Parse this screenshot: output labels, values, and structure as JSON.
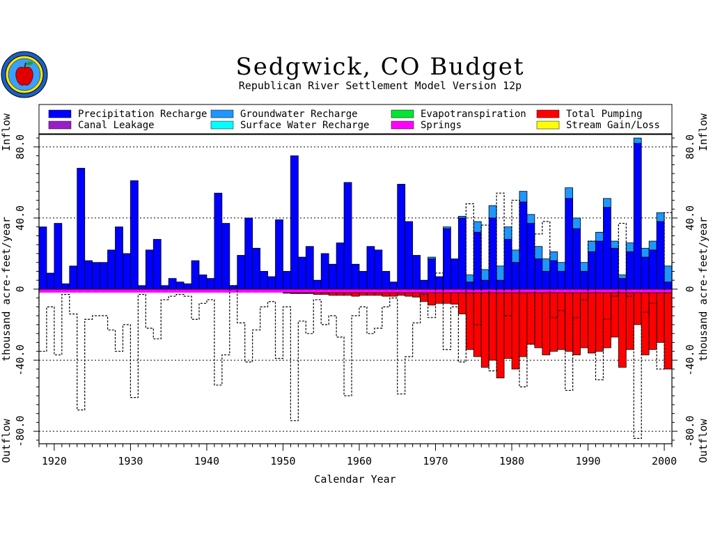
{
  "chart_data": {
    "type": "bar",
    "title": "Sedgwick, CO Budget",
    "subtitle": "Republican River Settlement Model Version 12p",
    "xlabel": "Calendar Year",
    "ylabel": "thousand acre-feet/year",
    "top_label": "Inflow",
    "bottom_label": "Outflow",
    "xlim": [
      1918,
      2001
    ],
    "ylim": [
      -87,
      87
    ],
    "x_ticks": [
      1920,
      1930,
      1940,
      1950,
      1960,
      1970,
      1980,
      1990,
      2000
    ],
    "x_tick_labels": [
      "1920",
      "1930",
      "1940",
      "1950",
      "1960",
      "1970",
      "1980",
      "1990",
      "2000"
    ],
    "y_ticks": [
      -80,
      -40,
      0,
      40,
      80
    ],
    "y_tick_labels": [
      "-80.0",
      "-40.0",
      "0",
      "40.0",
      "80.0"
    ],
    "gridlines_y": [
      -80,
      -40,
      40,
      80
    ],
    "legend_position": "top",
    "legend": [
      {
        "label": "Precipitation Recharge",
        "color": "#0000ff"
      },
      {
        "label": "Canal Leakage",
        "color": "#9a1ec8"
      },
      {
        "label": "Groundwater Recharge",
        "color": "#1e96ff"
      },
      {
        "label": "Surface Water Recharge",
        "color": "#00ffff"
      },
      {
        "label": "Evapotranspiration",
        "color": "#00e632"
      },
      {
        "label": "Springs",
        "color": "#ff00ff"
      },
      {
        "label": "Total Pumping",
        "color": "#ff0000"
      },
      {
        "label": "Stream Gain/Loss",
        "color": "#ffff00"
      }
    ],
    "years": [
      1918,
      1919,
      1920,
      1921,
      1922,
      1923,
      1924,
      1925,
      1926,
      1927,
      1928,
      1929,
      1930,
      1931,
      1932,
      1933,
      1934,
      1935,
      1936,
      1937,
      1938,
      1939,
      1940,
      1941,
      1942,
      1943,
      1944,
      1945,
      1946,
      1947,
      1948,
      1949,
      1950,
      1951,
      1952,
      1953,
      1954,
      1955,
      1956,
      1957,
      1958,
      1959,
      1960,
      1961,
      1962,
      1963,
      1964,
      1965,
      1966,
      1967,
      1968,
      1969,
      1970,
      1971,
      1972,
      1973,
      1974,
      1975,
      1976,
      1977,
      1978,
      1979,
      1980,
      1981,
      1982,
      1983,
      1984,
      1985,
      1986,
      1987,
      1988,
      1989,
      1990,
      1991,
      1992,
      1993,
      1994,
      1995,
      1996,
      1997,
      1998,
      1999,
      2000
    ],
    "series": [
      {
        "name": "Precipitation Recharge",
        "color": "#0000ff",
        "values": [
          35,
          9,
          37,
          3,
          13,
          68,
          16,
          15,
          15,
          22,
          35,
          20,
          61,
          2,
          22,
          28,
          2,
          6,
          4,
          3,
          16,
          8,
          6,
          54,
          37,
          2,
          19,
          40,
          23,
          10,
          7,
          39,
          10,
          75,
          18,
          24,
          5,
          20,
          14,
          26,
          60,
          14,
          10,
          24,
          22,
          10,
          4,
          59,
          38,
          19,
          5,
          17,
          7,
          34,
          17,
          40,
          4,
          32,
          5,
          40,
          5,
          28,
          15,
          49,
          37,
          17,
          10,
          16,
          10,
          51,
          34,
          10,
          21,
          27,
          46,
          23,
          6,
          21,
          82,
          18,
          22,
          38,
          4
        ]
      },
      {
        "name": "Groundwater Recharge",
        "color": "#1e96ff",
        "values": [
          0,
          0,
          0,
          0,
          0,
          0,
          0,
          0,
          0,
          0,
          0,
          0,
          0,
          0,
          0,
          0,
          0,
          0,
          0,
          0,
          0,
          0,
          0,
          0,
          0,
          0,
          0,
          0,
          0,
          0,
          0,
          0,
          0,
          0,
          0,
          0,
          0,
          0,
          0,
          0,
          0,
          0,
          0,
          0,
          0,
          0,
          0,
          0,
          0,
          0,
          0,
          1,
          0,
          1,
          0,
          1,
          4,
          6,
          6,
          7,
          8,
          7,
          7,
          6,
          5,
          7,
          7,
          5,
          5,
          6,
          6,
          5,
          6,
          5,
          5,
          4,
          2,
          5,
          3,
          5,
          5,
          5,
          9
        ]
      },
      {
        "name": "Springs",
        "color": "#ff00ff",
        "values": [
          -2,
          -2,
          -2,
          -2,
          -2,
          -2,
          -2,
          -2,
          -2,
          -2,
          -2,
          -2,
          -2,
          -2,
          -2,
          -2,
          -2,
          -2,
          -2,
          -2,
          -2,
          -2,
          -2,
          -2,
          -2,
          -2,
          -2,
          -2,
          -2,
          -2,
          -2,
          -2,
          -2,
          -2,
          -2,
          -2,
          -2,
          -2,
          -2,
          -2,
          -2,
          -2,
          -2,
          -2,
          -2,
          -2,
          -2,
          -2,
          -2,
          -2,
          -2,
          -2,
          -2,
          -2,
          -2,
          -2,
          -2,
          -2,
          -2,
          -2,
          -2,
          -2,
          -2,
          -2,
          -2,
          -2,
          -2,
          -2,
          -2,
          -2,
          -2,
          -2,
          -2,
          -2,
          -2,
          -2,
          -2,
          -2,
          -2,
          -2,
          -2,
          -2,
          -2
        ]
      },
      {
        "name": "Total Pumping",
        "color": "#ff0000",
        "values": [
          0,
          0,
          0,
          0,
          0,
          0,
          0,
          0,
          0,
          0,
          0,
          0,
          0,
          0,
          0,
          0,
          0,
          0,
          0,
          0,
          0,
          0,
          0,
          0,
          0,
          0,
          0,
          0,
          0,
          0,
          0,
          0,
          -0.3,
          -0.5,
          -0.5,
          -0.5,
          -1,
          -1,
          -1.5,
          -1.5,
          -1.5,
          -2,
          -1.5,
          -1.5,
          -1.5,
          -2,
          -2,
          -1.5,
          -2,
          -2.5,
          -5,
          -7,
          -6,
          -6,
          -6.5,
          -12,
          -32,
          -36,
          -42,
          -38,
          -48,
          -37,
          -43,
          -36,
          -29,
          -31,
          -35,
          -33,
          -32,
          -33,
          -35,
          -31,
          -34,
          -33,
          -31,
          -25,
          -42,
          -32,
          -18,
          -35,
          -32,
          -28,
          -43
        ]
      },
      {
        "name": "Stream Gain/Loss",
        "color": "#ffff00",
        "style": "dotted outline",
        "values": [
          -33,
          -8,
          -35,
          -1,
          -12,
          -66,
          -15,
          -13,
          -13,
          -21,
          -33,
          -18,
          -59,
          -1,
          -20,
          -26,
          -4,
          -2,
          -1,
          -2,
          -15,
          -6,
          -4,
          -52,
          -35,
          0,
          -17,
          -39,
          -21,
          -8,
          -5,
          -37,
          -8,
          -72,
          -16,
          -23,
          -4,
          -18,
          -13,
          -25,
          -58,
          -13,
          -8,
          -23,
          -20,
          -8,
          -3,
          -57,
          -36,
          -17,
          -1,
          -14,
          2,
          -32,
          -8,
          -39,
          40,
          -18,
          25,
          -44,
          41,
          -13,
          28,
          -53,
          -29,
          7,
          21,
          -14,
          -10,
          -55,
          -14,
          -4,
          0,
          -49,
          -15,
          -2,
          29,
          -2,
          -82,
          -11,
          -6,
          -43,
          30
        ]
      }
    ]
  }
}
